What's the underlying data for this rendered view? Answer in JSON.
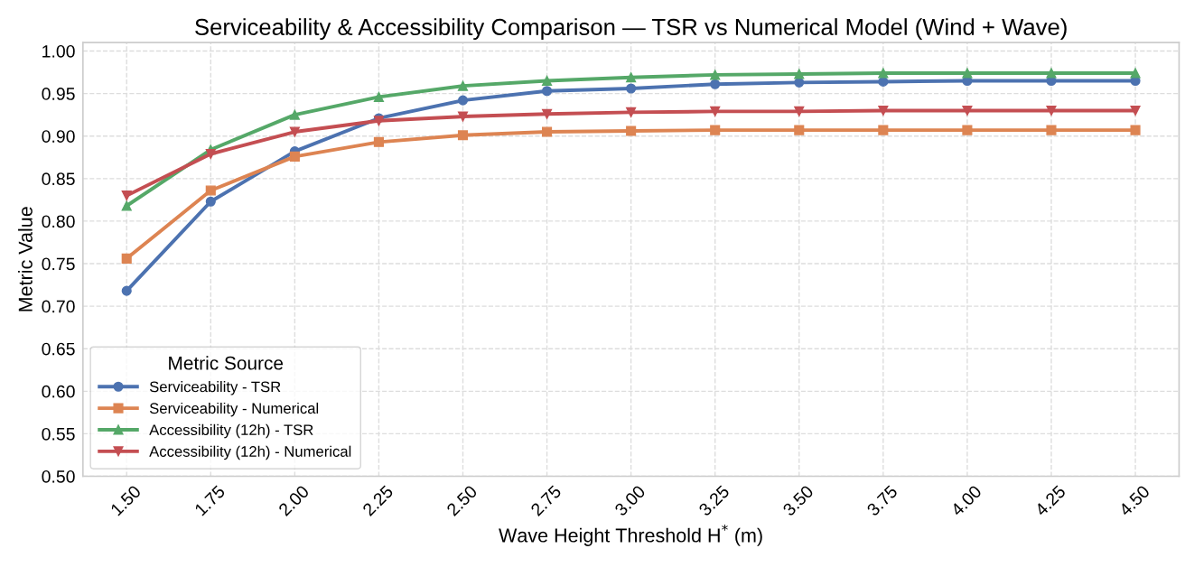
{
  "chart_data": {
    "type": "line",
    "title": "Serviceability & Accessibility Comparison — TSR vs Numerical Model (Wind + Wave)",
    "xlabel": "Wave Height Threshold H$^{*}$ (m)",
    "ylabel": "Metric Value",
    "legend_title": "Metric Source",
    "x": [
      1.5,
      1.75,
      2.0,
      2.25,
      2.5,
      2.75,
      3.0,
      3.25,
      3.5,
      3.75,
      4.0,
      4.25,
      4.5
    ],
    "series": [
      {
        "name": "Serviceability - TSR",
        "color": "#4c72b0",
        "marker": "circle",
        "values": [
          0.718,
          0.823,
          0.882,
          0.921,
          0.942,
          0.953,
          0.956,
          0.961,
          0.963,
          0.964,
          0.965,
          0.965,
          0.965
        ]
      },
      {
        "name": "Serviceability - Numerical",
        "color": "#dd8452",
        "marker": "square",
        "values": [
          0.756,
          0.836,
          0.876,
          0.893,
          0.901,
          0.905,
          0.906,
          0.907,
          0.907,
          0.907,
          0.907,
          0.907,
          0.907
        ]
      },
      {
        "name": "Accessibility (12h) - TSR",
        "color": "#55a868",
        "marker": "triangle",
        "values": [
          0.818,
          0.884,
          0.925,
          0.946,
          0.959,
          0.965,
          0.969,
          0.972,
          0.973,
          0.974,
          0.974,
          0.974,
          0.974
        ]
      },
      {
        "name": "Accessibility (12h) - Numerical",
        "color": "#c44e52",
        "marker": "triangle_down",
        "values": [
          0.83,
          0.879,
          0.905,
          0.918,
          0.923,
          0.926,
          0.928,
          0.929,
          0.929,
          0.93,
          0.93,
          0.93,
          0.93
        ]
      }
    ],
    "xlim": [
      1.37,
      4.63
    ],
    "xticks": [
      {
        "value": 1.5,
        "label": "1.50"
      },
      {
        "value": 1.75,
        "label": "1.75"
      },
      {
        "value": 2.0,
        "label": "2.00"
      },
      {
        "value": 2.25,
        "label": "2.25"
      },
      {
        "value": 2.5,
        "label": "2.50"
      },
      {
        "value": 2.75,
        "label": "2.75"
      },
      {
        "value": 3.0,
        "label": "3.00"
      },
      {
        "value": 3.25,
        "label": "3.25"
      },
      {
        "value": 3.5,
        "label": "3.50"
      },
      {
        "value": 3.75,
        "label": "3.75"
      },
      {
        "value": 4.0,
        "label": "4.00"
      },
      {
        "value": 4.25,
        "label": "4.25"
      },
      {
        "value": 4.5,
        "label": "4.50"
      }
    ],
    "ylim": [
      0.5,
      1.01
    ],
    "yticks": [
      {
        "value": 0.5,
        "label": "0.50"
      },
      {
        "value": 0.55,
        "label": "0.55"
      },
      {
        "value": 0.6,
        "label": "0.60"
      },
      {
        "value": 0.65,
        "label": "0.65"
      },
      {
        "value": 0.7,
        "label": "0.70"
      },
      {
        "value": 0.75,
        "label": "0.75"
      },
      {
        "value": 0.8,
        "label": "0.80"
      },
      {
        "value": 0.85,
        "label": "0.85"
      },
      {
        "value": 0.9,
        "label": "0.90"
      },
      {
        "value": 0.95,
        "label": "0.95"
      },
      {
        "value": 1.0,
        "label": "1.00"
      }
    ],
    "grid": true,
    "legend": "bottom left",
    "line_style": "solid"
  }
}
